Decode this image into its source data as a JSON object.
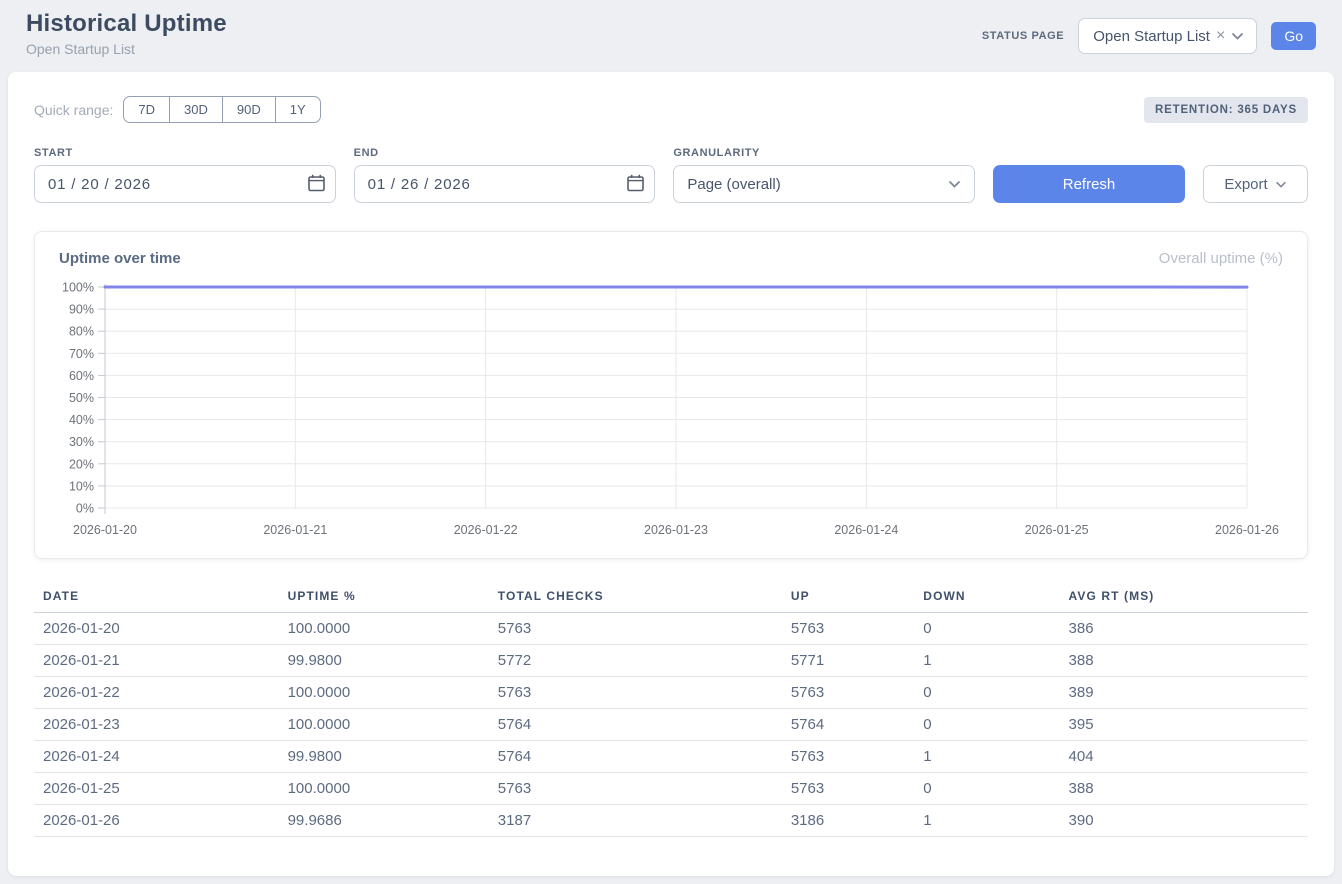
{
  "page": {
    "title": "Historical Uptime",
    "subtitle": "Open Startup List"
  },
  "header": {
    "status_page_label": "STATUS PAGE",
    "status_page_value": "Open Startup List",
    "go_label": "Go"
  },
  "filters": {
    "quick_range_label": "Quick range:",
    "quick_ranges": [
      "7D",
      "30D",
      "90D",
      "1Y"
    ],
    "retention_badge": "RETENTION: 365 DAYS",
    "start_label": "START",
    "start_value": "01 / 20 / 2026",
    "end_label": "END",
    "end_value": "01 / 26 / 2026",
    "granularity_label": "GRANULARITY",
    "granularity_value": "Page (overall)",
    "refresh_label": "Refresh",
    "export_label": "Export"
  },
  "chart": {
    "title": "Uptime over time",
    "legend": "Overall uptime (%)"
  },
  "chart_data": {
    "type": "line",
    "title": "Uptime over time",
    "x": [
      "2026-01-20",
      "2026-01-21",
      "2026-01-22",
      "2026-01-23",
      "2026-01-24",
      "2026-01-25",
      "2026-01-26"
    ],
    "series": [
      {
        "name": "Overall uptime (%)",
        "values": [
          100.0,
          99.98,
          100.0,
          100.0,
          99.98,
          100.0,
          99.9686
        ]
      }
    ],
    "ylim": [
      0,
      100
    ],
    "y_tick_step": 10,
    "y_tick_suffix": "%",
    "grid": true,
    "legend_position": "top-right",
    "line_color": "#8184e9",
    "grid_color": "#e6e8ec",
    "axis_color": "#c6cad0"
  },
  "table": {
    "columns": [
      "DATE",
      "UPTIME %",
      "TOTAL CHECKS",
      "UP",
      "DOWN",
      "AVG RT (MS)"
    ],
    "rows": [
      [
        "2026-01-20",
        "100.0000",
        "5763",
        "5763",
        "0",
        "386"
      ],
      [
        "2026-01-21",
        "99.9800",
        "5772",
        "5771",
        "1",
        "388"
      ],
      [
        "2026-01-22",
        "100.0000",
        "5763",
        "5763",
        "0",
        "389"
      ],
      [
        "2026-01-23",
        "100.0000",
        "5764",
        "5764",
        "0",
        "395"
      ],
      [
        "2026-01-24",
        "99.9800",
        "5764",
        "5763",
        "1",
        "404"
      ],
      [
        "2026-01-25",
        "100.0000",
        "5763",
        "5763",
        "0",
        "388"
      ],
      [
        "2026-01-26",
        "99.9686",
        "3187",
        "3186",
        "1",
        "390"
      ]
    ]
  },
  "colors": {
    "accent_blue": "#5b85e8",
    "line_purple": "#8184e9",
    "page_bg": "#edeff3"
  }
}
